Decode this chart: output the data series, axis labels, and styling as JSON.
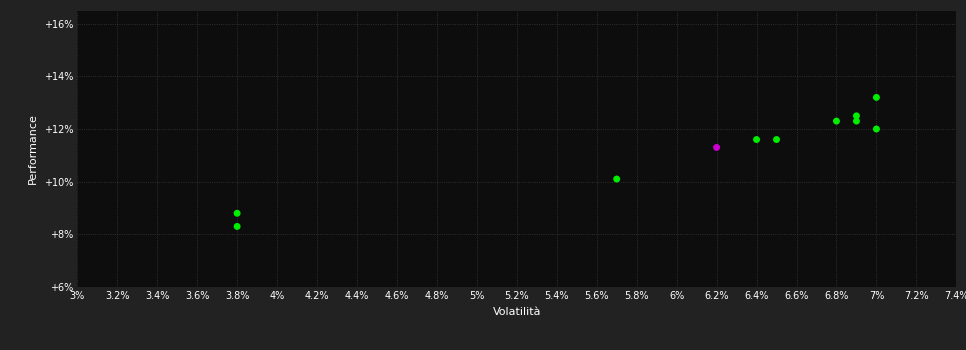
{
  "background_color": "#222222",
  "plot_bg_color": "#0d0d0d",
  "grid_color": "#3a3a3a",
  "text_color": "#ffffff",
  "xlabel": "Volatilità",
  "ylabel": "Performance",
  "xlim": [
    0.03,
    0.074
  ],
  "ylim": [
    0.06,
    0.165
  ],
  "xtick_vals": [
    0.03,
    0.032,
    0.034,
    0.036,
    0.038,
    0.04,
    0.042,
    0.044,
    0.046,
    0.048,
    0.05,
    0.052,
    0.054,
    0.056,
    0.058,
    0.06,
    0.062,
    0.064,
    0.066,
    0.068,
    0.07,
    0.072,
    0.074
  ],
  "xtick_labels": [
    "3%",
    "3.2%",
    "3.4%",
    "3.6%",
    "3.8%",
    "4%",
    "4.2%",
    "4.4%",
    "4.6%",
    "4.8%",
    "5%",
    "5.2%",
    "5.4%",
    "5.6%",
    "5.8%",
    "6%",
    "6.2%",
    "6.4%",
    "6.6%",
    "6.8%",
    "7%",
    "7.2%",
    "7.4%"
  ],
  "ytick_vals": [
    0.06,
    0.08,
    0.1,
    0.12,
    0.14,
    0.16
  ],
  "ytick_labels": [
    "+6%",
    "+8%",
    "+10%",
    "+12%",
    "+14%",
    "+16%"
  ],
  "green_points": [
    [
      0.038,
      0.088
    ],
    [
      0.038,
      0.083
    ],
    [
      0.057,
      0.101
    ],
    [
      0.064,
      0.116
    ],
    [
      0.065,
      0.116
    ],
    [
      0.068,
      0.123
    ],
    [
      0.069,
      0.125
    ],
    [
      0.069,
      0.123
    ],
    [
      0.07,
      0.132
    ],
    [
      0.07,
      0.12
    ]
  ],
  "magenta_points": [
    [
      0.062,
      0.113
    ]
  ],
  "green_color": "#00ee00",
  "magenta_color": "#cc00cc",
  "marker_size": 5,
  "figsize": [
    9.66,
    3.5
  ],
  "dpi": 100
}
